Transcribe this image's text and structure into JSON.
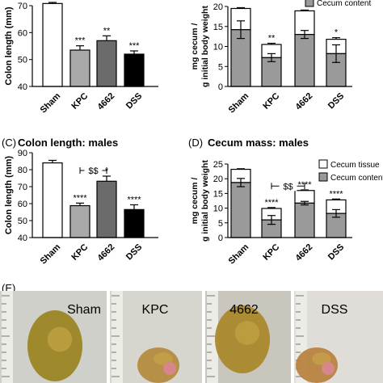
{
  "chart_data": [
    {
      "id": "A",
      "type": "bar",
      "panel_label": "",
      "title": "",
      "ylabel": "Colon length (mm)",
      "ylim": [
        40,
        70
      ],
      "yticks": [
        40,
        50,
        60,
        70
      ],
      "categories": [
        "Sham",
        "KPC",
        "4662",
        "DSS"
      ],
      "values": [
        70.8,
        53.5,
        57.0,
        52.0
      ],
      "errors": [
        0.4,
        1.6,
        1.8,
        1.2
      ],
      "fills": [
        "#ffffff",
        "#a9a9a9",
        "#6b6b6b",
        "#000000"
      ],
      "significance": [
        "",
        "***",
        "**",
        "***"
      ],
      "bracket": null
    },
    {
      "id": "B",
      "type": "stacked-bar",
      "panel_label": "",
      "title": "",
      "ylabel": "mg cecum / g initial body weight",
      "ylim": [
        0,
        20
      ],
      "yticks": [
        0,
        5,
        10,
        15,
        20
      ],
      "categories": [
        "Sham",
        "KPC",
        "4662",
        "DSS"
      ],
      "series": [
        {
          "name": "Cecum content",
          "values": [
            14.2,
            7.2,
            13.0,
            8.2
          ],
          "errors": [
            2.2,
            1.0,
            1.0,
            2.2
          ],
          "fill": "#9a9a9a"
        },
        {
          "name": "Cecum tissue",
          "values": [
            5.3,
            3.3,
            5.9,
            3.6
          ],
          "errors": [
            0.2,
            0.3,
            0.2,
            0.4
          ],
          "fill": "#ffffff"
        }
      ],
      "significance": [
        "",
        "**",
        "",
        "*"
      ],
      "legend_entries": [
        "Cecum content"
      ],
      "bracket": null
    },
    {
      "id": "C",
      "type": "bar",
      "panel_label": "(C)",
      "title": "Colon length: males",
      "ylabel": "Colon length (mm)",
      "ylim": [
        40,
        90
      ],
      "yticks": [
        40,
        50,
        60,
        70,
        80,
        90
      ],
      "categories": [
        "Sham",
        "KPC",
        "4662",
        "DSS"
      ],
      "values": [
        84.0,
        58.8,
        73.2,
        56.5
      ],
      "errors": [
        1.5,
        1.5,
        3.0,
        2.8
      ],
      "fills": [
        "#ffffff",
        "#a9a9a9",
        "#6b6b6b",
        "#000000"
      ],
      "significance": [
        "",
        "****",
        "*",
        "****"
      ],
      "bracket": {
        "from": "KPC",
        "to": "4662",
        "label": "$$",
        "value": 79.5
      }
    },
    {
      "id": "D",
      "type": "stacked-bar",
      "panel_label": "(D)",
      "title": "Cecum mass: males",
      "ylabel": "mg cecum / g initial body weight",
      "ylim": [
        0,
        25
      ],
      "yticks": [
        0,
        5,
        10,
        15,
        20,
        25
      ],
      "categories": [
        "Sham",
        "KPC",
        "4662",
        "DSS"
      ],
      "series": [
        {
          "name": "Cecum content",
          "values": [
            18.7,
            6.0,
            11.7,
            8.2
          ],
          "errors": [
            1.4,
            1.5,
            0.6,
            1.3
          ],
          "fill": "#9a9a9a"
        },
        {
          "name": "Cecum tissue",
          "values": [
            4.5,
            3.9,
            4.3,
            4.6
          ],
          "errors": [
            0.2,
            0.3,
            0.2,
            0.3
          ],
          "fill": "#ffffff"
        }
      ],
      "significance": [
        "",
        "****",
        "****",
        "****"
      ],
      "legend_entries": [
        "Cecum tissue",
        "Cecum content"
      ],
      "bracket": {
        "from": "KPC",
        "to": "4662",
        "label": "$$",
        "value": 17.5
      }
    }
  ],
  "photo_panel": {
    "panel_label": "(E)",
    "labels": [
      "Sham",
      "KPC",
      "4662",
      "DSS"
    ]
  }
}
